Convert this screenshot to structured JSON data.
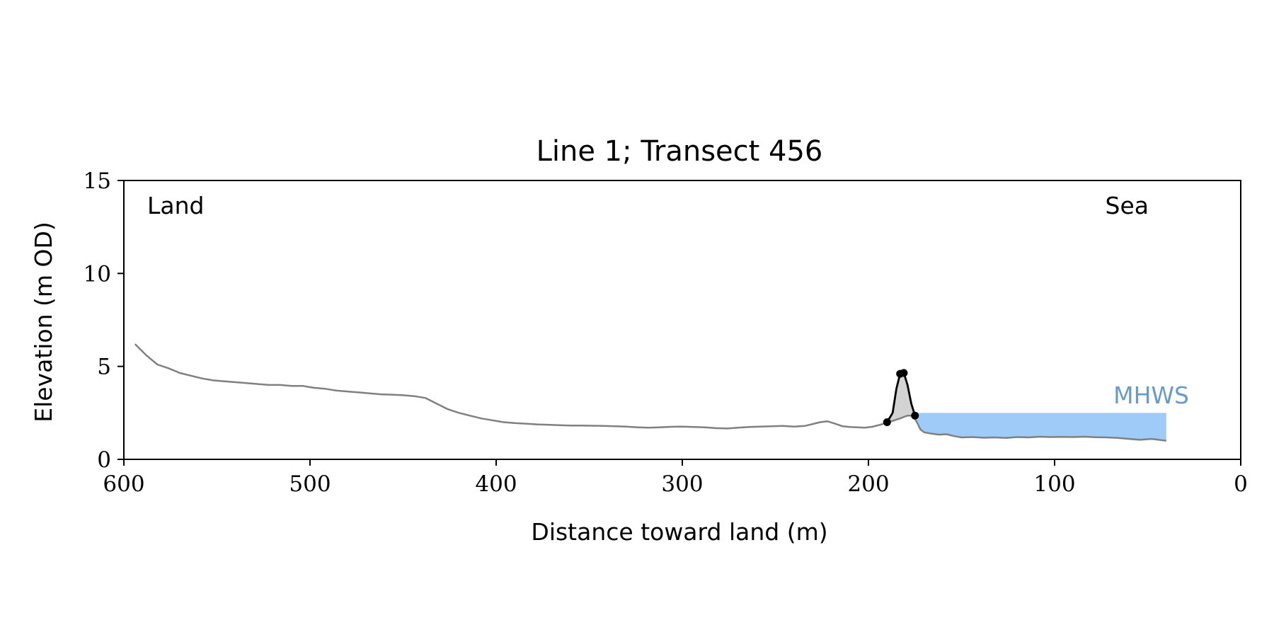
{
  "chart_data": {
    "type": "line",
    "title": "Line 1; Transect 456",
    "xlabel": "Distance toward land (m)",
    "ylabel": "Elevation (m OD)",
    "xlim": [
      600,
      0
    ],
    "ylim": [
      0,
      15
    ],
    "x_ticks": [
      600,
      500,
      400,
      300,
      200,
      100,
      0
    ],
    "y_ticks": [
      0,
      5,
      10,
      15
    ],
    "grid": false,
    "annotations": {
      "left": "Land",
      "right": "Sea",
      "level": "MHWS"
    },
    "colors": {
      "profile": "#808080",
      "dune": "#000000",
      "dune_fill": "#d3d3d3",
      "sea": "#9ecbf8",
      "mhws_label": "#6a9bc8"
    },
    "mhws_level": 2.5,
    "profile": {
      "x": [
        594,
        588,
        582,
        576,
        570,
        564,
        558,
        552,
        546,
        540,
        534,
        528,
        522,
        516,
        510,
        504,
        498,
        492,
        486,
        480,
        474,
        468,
        462,
        456,
        450,
        444,
        438,
        432,
        426,
        420,
        414,
        408,
        402,
        396,
        390,
        384,
        378,
        372,
        366,
        360,
        354,
        348,
        342,
        336,
        330,
        324,
        318,
        312,
        306,
        300,
        294,
        288,
        282,
        276,
        270,
        264,
        258,
        252,
        246,
        240,
        234,
        230,
        226,
        222,
        218,
        214,
        210,
        206,
        202,
        198,
        194,
        190,
        186,
        183,
        181,
        179,
        176,
        174,
        172,
        170,
        166,
        162,
        158,
        154,
        150,
        144,
        138,
        132,
        126,
        120,
        114,
        108,
        102,
        96,
        90,
        84,
        78,
        72,
        66,
        60,
        54,
        48,
        44,
        40
      ],
      "y": [
        6.2,
        5.6,
        5.1,
        4.9,
        4.65,
        4.5,
        4.35,
        4.25,
        4.2,
        4.15,
        4.1,
        4.05,
        4.0,
        4.0,
        3.95,
        3.95,
        3.85,
        3.8,
        3.7,
        3.65,
        3.6,
        3.55,
        3.5,
        3.48,
        3.45,
        3.4,
        3.3,
        3.0,
        2.7,
        2.5,
        2.35,
        2.2,
        2.1,
        2.0,
        1.95,
        1.92,
        1.88,
        1.86,
        1.84,
        1.82,
        1.82,
        1.81,
        1.8,
        1.78,
        1.76,
        1.72,
        1.7,
        1.72,
        1.75,
        1.76,
        1.74,
        1.72,
        1.68,
        1.66,
        1.7,
        1.74,
        1.76,
        1.78,
        1.8,
        1.76,
        1.8,
        1.9,
        2.0,
        2.05,
        1.92,
        1.78,
        1.74,
        1.72,
        1.7,
        1.75,
        1.85,
        1.98,
        2.1,
        2.2,
        2.28,
        2.35,
        2.35,
        2.0,
        1.6,
        1.45,
        1.38,
        1.33,
        1.35,
        1.25,
        1.18,
        1.2,
        1.16,
        1.18,
        1.15,
        1.2,
        1.18,
        1.22,
        1.2,
        1.21,
        1.2,
        1.22,
        1.19,
        1.18,
        1.15,
        1.1,
        1.05,
        1.1,
        1.05,
        1.0
      ]
    },
    "dune": {
      "x": [
        190,
        187,
        185,
        183,
        181,
        179,
        177,
        175
      ],
      "y": [
        2.0,
        2.5,
        3.8,
        4.6,
        4.65,
        4.0,
        3.0,
        2.35
      ]
    },
    "dune_markers": {
      "x": [
        190,
        183,
        181,
        175
      ],
      "y": [
        2.0,
        4.6,
        4.65,
        2.35
      ]
    },
    "sea": {
      "x_start": 174,
      "x_end": 40
    }
  }
}
